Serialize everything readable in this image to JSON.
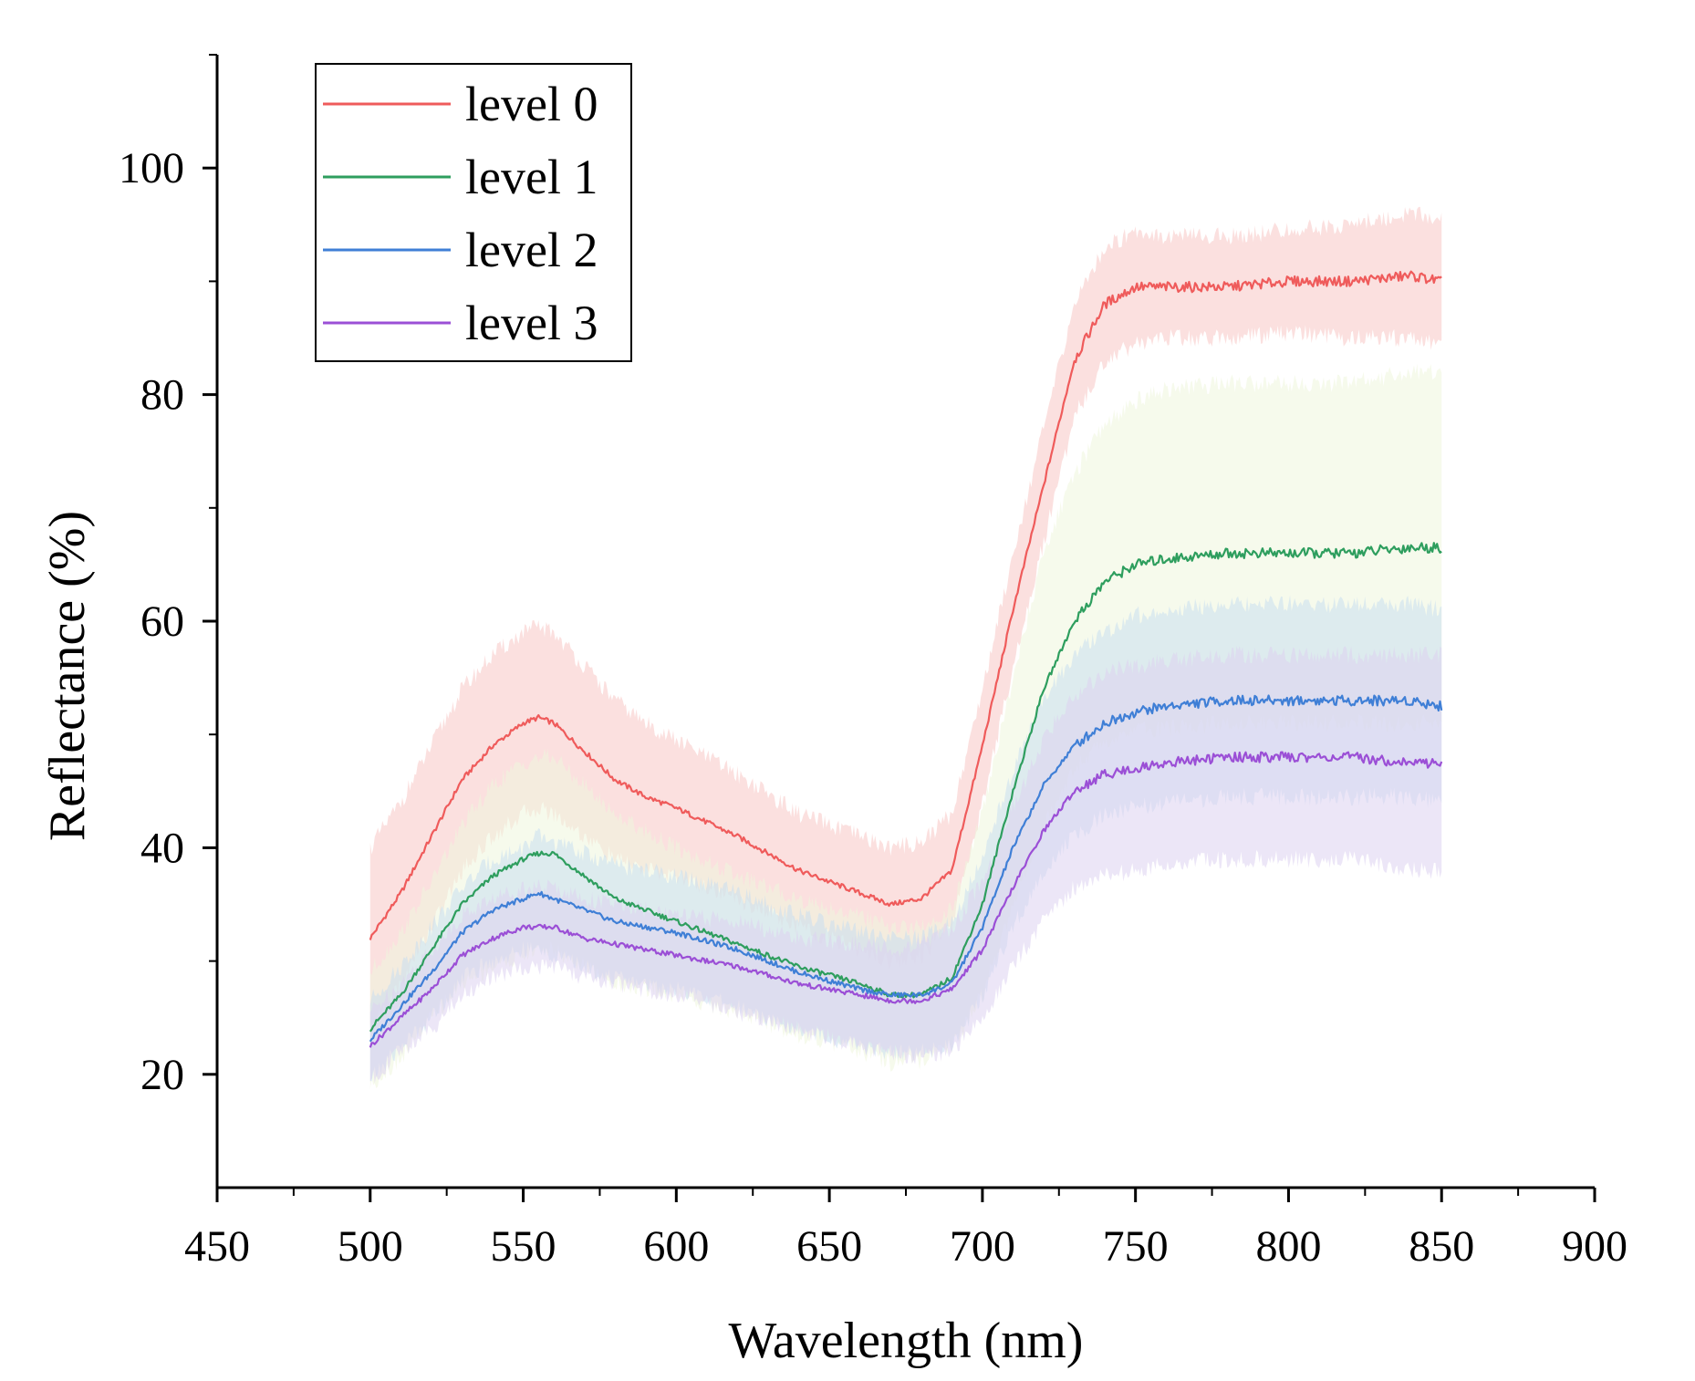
{
  "chart_data": {
    "type": "line",
    "title": "",
    "xlabel": "Wavelength (nm)",
    "ylabel": "Reflectance (%)",
    "xlim": [
      450,
      900
    ],
    "ylim": [
      10,
      110
    ],
    "xticks": [
      450,
      500,
      550,
      600,
      650,
      700,
      750,
      800,
      850,
      900
    ],
    "yticks": [
      20,
      40,
      60,
      80,
      100
    ],
    "legend_position": "top-left",
    "grid": false,
    "x": [
      500,
      510,
      520,
      530,
      540,
      550,
      555,
      560,
      570,
      580,
      590,
      600,
      620,
      640,
      660,
      670,
      680,
      690,
      700,
      710,
      720,
      730,
      740,
      750,
      760,
      780,
      800,
      820,
      840,
      850
    ],
    "series": [
      {
        "name": "level 0",
        "color": "#ef5b5b",
        "band_color": "#f8c6c4",
        "values": [
          32,
          36,
          41,
          46,
          49,
          51,
          51.5,
          51,
          48.5,
          46,
          44.5,
          43.5,
          41,
          38,
          36,
          35,
          35.5,
          38,
          49,
          61,
          72,
          83,
          88,
          89.5,
          89.5,
          89.5,
          90,
          90,
          90.5,
          90
        ],
        "band_halfwidth": [
          8,
          8,
          8,
          8,
          8,
          8,
          8,
          8,
          7.5,
          7,
          6.5,
          6,
          5.5,
          5,
          5,
          5,
          5,
          5,
          5,
          5,
          5,
          5,
          5,
          5,
          4.5,
          4.5,
          4.5,
          5,
          5.5,
          5.5
        ]
      },
      {
        "name": "level 1",
        "color": "#2e9e5e",
        "band_color": "#eef6dc",
        "values": [
          24,
          27,
          31,
          35,
          37.5,
          39,
          39.5,
          39.5,
          37.5,
          35.5,
          34.5,
          33.5,
          31.5,
          29.5,
          28,
          27,
          27,
          28.5,
          35,
          45,
          54,
          60,
          63.5,
          65,
          65.5,
          66,
          66,
          66,
          66.5,
          66.5
        ],
        "band_halfwidth": [
          5,
          5.5,
          6,
          7,
          8,
          8.5,
          8.5,
          8.5,
          8,
          7.5,
          7,
          6.5,
          6,
          6,
          6,
          6,
          6,
          6,
          8,
          10,
          12,
          13,
          14,
          14.5,
          15,
          15,
          15,
          15,
          15.5,
          15.5
        ]
      },
      {
        "name": "level 2",
        "color": "#3f7fd6",
        "band_color": "#c9def0",
        "values": [
          23,
          26,
          29,
          32.5,
          34.5,
          35.5,
          36,
          35.5,
          34.5,
          33.5,
          33,
          32.5,
          31,
          29,
          27.5,
          27,
          27,
          28,
          33,
          40,
          45.5,
          49,
          51,
          52,
          52.5,
          53,
          53,
          53,
          53,
          52.5
        ],
        "band_halfwidth": [
          3.5,
          3.5,
          4,
          4,
          4.5,
          4.5,
          5,
          5,
          5,
          5,
          5,
          5,
          5,
          5,
          5,
          5,
          5,
          5.5,
          6,
          7,
          7.5,
          8,
          8,
          8.5,
          8.5,
          8.5,
          8.5,
          8.5,
          8.5,
          8.5
        ]
      },
      {
        "name": "level 3",
        "color": "#9b4fd6",
        "band_color": "#ddd2f0",
        "values": [
          22.5,
          25,
          27.5,
          30.5,
          32,
          33,
          33,
          33,
          32,
          31.5,
          31,
          30.5,
          29.5,
          28,
          27,
          26.5,
          26.5,
          27.5,
          31,
          36.5,
          41.5,
          45,
          46.5,
          47,
          47.5,
          48,
          48,
          48,
          47.5,
          47.5
        ],
        "band_halfwidth": [
          3,
          3,
          3.5,
          3.5,
          3.5,
          3.5,
          3.5,
          3.5,
          3.5,
          3.5,
          3.5,
          3.5,
          4,
          4,
          4.5,
          4.5,
          5,
          5.5,
          6,
          7,
          8,
          8.5,
          9,
          9,
          9,
          9,
          9,
          9,
          9.5,
          9.5
        ]
      }
    ]
  }
}
